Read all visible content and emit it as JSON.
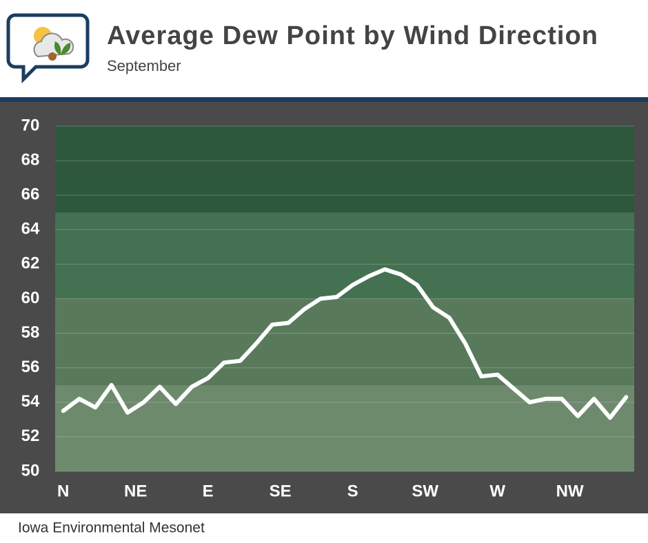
{
  "chart_data": {
    "type": "line",
    "title": "Average Dew Point by Wind Direction",
    "subtitle": "September",
    "source": "Iowa Environmental Mesonet",
    "x": [
      0,
      10,
      20,
      30,
      40,
      50,
      60,
      70,
      80,
      90,
      100,
      110,
      120,
      130,
      140,
      150,
      160,
      170,
      180,
      190,
      200,
      210,
      220,
      230,
      240,
      250,
      260,
      270,
      280,
      290,
      300,
      310,
      320,
      330,
      340,
      350
    ],
    "values": [
      53.5,
      54.2,
      53.7,
      55.0,
      53.4,
      54.0,
      54.9,
      53.9,
      54.9,
      55.4,
      56.3,
      56.4,
      57.4,
      58.5,
      58.6,
      59.4,
      60.0,
      60.1,
      60.8,
      61.3,
      61.7,
      61.4,
      60.8,
      59.5,
      58.9,
      57.4,
      55.5,
      55.6,
      54.8,
      54.0,
      54.2,
      54.2,
      53.2,
      54.2,
      53.1,
      54.3
    ],
    "color": "#ffffff",
    "xlim": [
      -5,
      355
    ],
    "xticks": [
      {
        "value": 0,
        "label": "N"
      },
      {
        "value": 45,
        "label": "NE"
      },
      {
        "value": 90,
        "label": "E"
      },
      {
        "value": 135,
        "label": "SE"
      },
      {
        "value": 180,
        "label": "S"
      },
      {
        "value": 225,
        "label": "SW"
      },
      {
        "value": 270,
        "label": "W"
      },
      {
        "value": 315,
        "label": "NW"
      }
    ],
    "ylim": [
      50,
      70
    ],
    "yticks": [
      50,
      52,
      54,
      56,
      58,
      60,
      62,
      64,
      66,
      68,
      70
    ],
    "grid": true,
    "bands": [
      {
        "from": 50,
        "to": 55,
        "color": "#6e8a6d"
      },
      {
        "from": 55,
        "to": 60,
        "color": "#587a5b"
      },
      {
        "from": 60,
        "to": 65,
        "color": "#437152"
      },
      {
        "from": 65,
        "to": 70,
        "color": "#2e583e"
      }
    ]
  }
}
